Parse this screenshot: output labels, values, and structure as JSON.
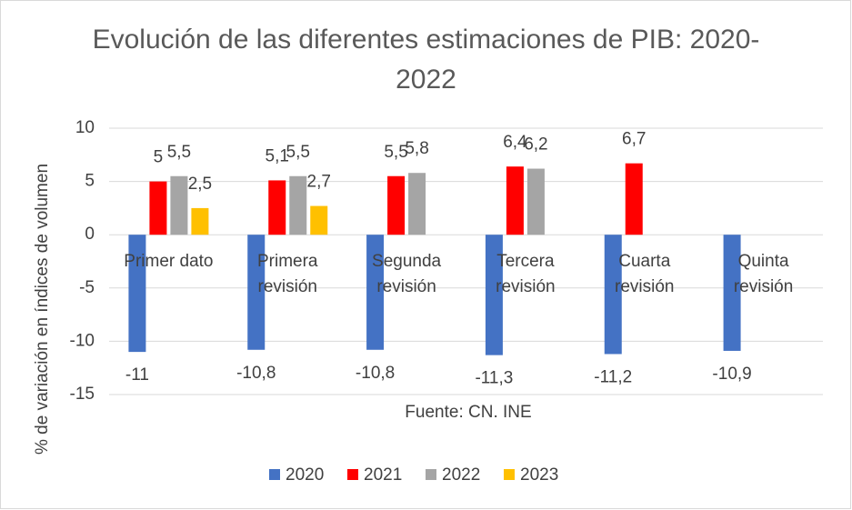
{
  "chart_data": {
    "type": "bar",
    "title": "Evolución de las diferentes estimaciones de PIB: 2020-2022",
    "y_label": "% de variación en índices de volumen",
    "annotation": "Fuente: CN. INE",
    "categories": [
      "Primer dato",
      "Primera revisión",
      "Segunda revisión",
      "Tercera revisión",
      "Cuarta revisión",
      "Quinta revisión"
    ],
    "series": [
      {
        "name": "2020",
        "color": "#4472c4",
        "values": [
          -11,
          -10.8,
          -10.8,
          -11.3,
          -11.2,
          -10.9
        ],
        "value_labels": [
          "-11",
          "-10,8",
          "-10,8",
          "-11,3",
          "-11,2",
          "-10,9"
        ]
      },
      {
        "name": "2021",
        "color": "#ff0000",
        "values": [
          5,
          5.1,
          5.5,
          6.4,
          6.7,
          null
        ],
        "value_labels": [
          "5",
          "5,1",
          "5,5",
          "6,4",
          "6,7",
          null
        ]
      },
      {
        "name": "2022",
        "color": "#a5a5a5",
        "values": [
          5.5,
          5.5,
          5.8,
          6.2,
          null,
          null
        ],
        "value_labels": [
          "5,5",
          "5,5",
          "5,8",
          "6,2",
          null,
          null
        ]
      },
      {
        "name": "2023",
        "color": "#ffc000",
        "values": [
          2.5,
          2.7,
          null,
          null,
          null,
          null
        ],
        "value_labels": [
          "2,5",
          "2,7",
          null,
          null,
          null,
          null
        ]
      }
    ],
    "ylim": [
      -15,
      10
    ],
    "yticks": [
      -15,
      -10,
      -5,
      0,
      5,
      10
    ],
    "grid": true,
    "legend": "bottom"
  }
}
